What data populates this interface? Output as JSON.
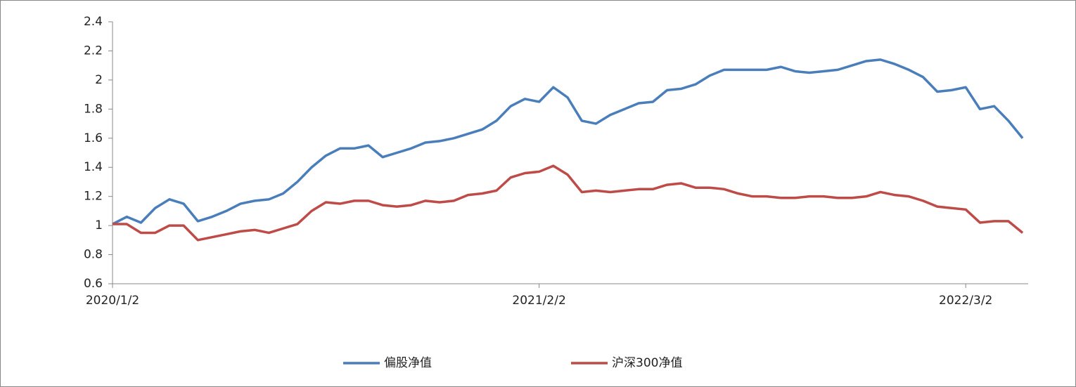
{
  "chart_data": {
    "type": "line",
    "categories": [
      "2020/1/2",
      null,
      null,
      null,
      null,
      null,
      null,
      null,
      null,
      null,
      null,
      null,
      null,
      null,
      null,
      null,
      null,
      null,
      null,
      null,
      null,
      null,
      null,
      null,
      null,
      null,
      null,
      null,
      null,
      null,
      "2021/2/2",
      null,
      null,
      null,
      null,
      null,
      null,
      null,
      null,
      null,
      null,
      null,
      null,
      null,
      null,
      null,
      null,
      null,
      null,
      null,
      null,
      null,
      null,
      null,
      null,
      null,
      null,
      null,
      null,
      null,
      "2022/3/2",
      null,
      null,
      null,
      null
    ],
    "series": [
      {
        "name": "偏股净值",
        "color": "#4a7ebb",
        "values": [
          1.01,
          1.06,
          1.02,
          1.12,
          1.18,
          1.15,
          1.03,
          1.06,
          1.1,
          1.15,
          1.17,
          1.18,
          1.22,
          1.3,
          1.4,
          1.48,
          1.53,
          1.53,
          1.55,
          1.47,
          1.5,
          1.53,
          1.57,
          1.58,
          1.6,
          1.63,
          1.66,
          1.72,
          1.82,
          1.87,
          1.85,
          1.95,
          1.88,
          1.72,
          1.7,
          1.76,
          1.8,
          1.84,
          1.85,
          1.93,
          1.94,
          1.97,
          2.03,
          2.07,
          2.07,
          2.07,
          2.07,
          2.09,
          2.06,
          2.05,
          2.06,
          2.07,
          2.1,
          2.13,
          2.14,
          2.11,
          2.07,
          2.02,
          1.92,
          1.93,
          1.95,
          1.8,
          1.82,
          1.72,
          1.6
        ]
      },
      {
        "name": "沪深300净值",
        "color": "#be4b48",
        "values": [
          1.01,
          1.01,
          0.95,
          0.95,
          1.0,
          1.0,
          0.9,
          0.92,
          0.94,
          0.96,
          0.97,
          0.95,
          0.98,
          1.01,
          1.1,
          1.16,
          1.15,
          1.17,
          1.17,
          1.14,
          1.13,
          1.14,
          1.17,
          1.16,
          1.17,
          1.21,
          1.22,
          1.24,
          1.33,
          1.36,
          1.37,
          1.41,
          1.35,
          1.23,
          1.24,
          1.23,
          1.24,
          1.25,
          1.25,
          1.28,
          1.29,
          1.26,
          1.26,
          1.25,
          1.22,
          1.2,
          1.2,
          1.19,
          1.19,
          1.2,
          1.2,
          1.19,
          1.19,
          1.2,
          1.23,
          1.21,
          1.2,
          1.17,
          1.13,
          1.12,
          1.11,
          1.02,
          1.03,
          1.03,
          0.95
        ]
      }
    ],
    "ylim": [
      0.6,
      2.4
    ],
    "yticks": [
      0.6,
      0.8,
      1,
      1.2,
      1.4,
      1.6,
      1.8,
      2,
      2.2,
      2.4
    ],
    "grid": false,
    "legend": "bottom"
  }
}
